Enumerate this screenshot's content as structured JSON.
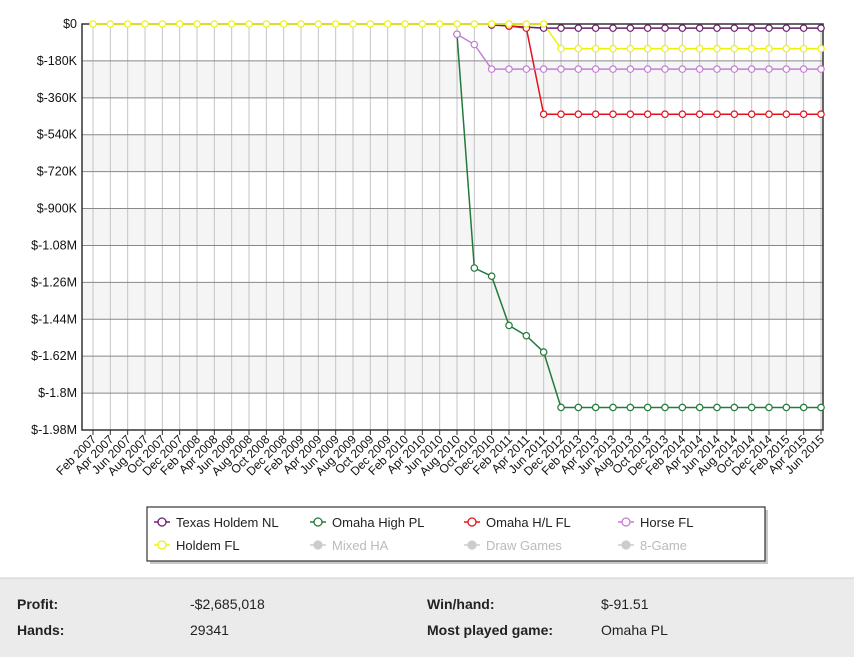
{
  "chart_data": {
    "type": "line",
    "categories": [
      "Feb 2007",
      "Apr 2007",
      "Jun 2007",
      "Aug 2007",
      "Oct 2007",
      "Dec 2007",
      "Feb 2008",
      "Apr 2008",
      "Jun 2008",
      "Aug 2008",
      "Oct 2008",
      "Dec 2008",
      "Feb 2009",
      "Apr 2009",
      "Jun 2009",
      "Aug 2009",
      "Oct 2009",
      "Dec 2009",
      "Feb 2010",
      "Apr 2010",
      "Jun 2010",
      "Aug 2010",
      "Oct 2010",
      "Dec 2010",
      "Feb 2011",
      "Apr 2011",
      "Jun 2011",
      "Dec 2012",
      "Feb 2013",
      "Apr 2013",
      "Jun 2013",
      "Aug 2013",
      "Oct 2013",
      "Dec 2013",
      "Feb 2014",
      "Apr 2014",
      "Jun 2014",
      "Aug 2014",
      "Oct 2014",
      "Dec 2014",
      "Feb 2015",
      "Apr 2015",
      "Jun 2015"
    ],
    "series": [
      {
        "name": "Texas Holdem NL",
        "color": "#6b1a6b",
        "values": [
          null,
          null,
          null,
          null,
          null,
          null,
          null,
          null,
          null,
          null,
          null,
          null,
          null,
          null,
          null,
          null,
          null,
          null,
          null,
          null,
          null,
          null,
          null,
          -5000,
          -10000,
          -15000,
          -20000,
          -20000,
          -20000,
          -20000,
          -20000,
          -20000,
          -20000,
          -20000,
          -20000,
          -20000,
          -20000,
          -20000,
          -20000,
          -20000,
          -20000,
          -20000,
          -20000
        ]
      },
      {
        "name": "Omaha High PL",
        "color": "#237a3a",
        "values": [
          null,
          null,
          null,
          null,
          null,
          null,
          null,
          null,
          null,
          null,
          null,
          null,
          null,
          null,
          null,
          null,
          null,
          null,
          null,
          null,
          null,
          -50000,
          -1190000,
          -1230000,
          -1470000,
          -1520000,
          -1600000,
          -1870000,
          -1870000,
          -1870000,
          -1870000,
          -1870000,
          -1870000,
          -1870000,
          -1870000,
          -1870000,
          -1870000,
          -1870000,
          -1870000,
          -1870000,
          -1870000,
          -1870000,
          -1870000
        ]
      },
      {
        "name": "Omaha H/L FL",
        "color": "#e4121c",
        "values": [
          null,
          null,
          null,
          null,
          null,
          null,
          null,
          null,
          null,
          null,
          null,
          null,
          null,
          null,
          null,
          null,
          null,
          null,
          null,
          null,
          null,
          null,
          null,
          null,
          -10000,
          -20000,
          -440000,
          -440000,
          -440000,
          -440000,
          -440000,
          -440000,
          -440000,
          -440000,
          -440000,
          -440000,
          -440000,
          -440000,
          -440000,
          -440000,
          -440000,
          -440000,
          -440000
        ]
      },
      {
        "name": "Horse FL",
        "color": "#c47fd6",
        "values": [
          null,
          null,
          null,
          null,
          null,
          null,
          null,
          null,
          null,
          null,
          null,
          null,
          null,
          null,
          null,
          null,
          null,
          null,
          null,
          null,
          null,
          -50000,
          -100000,
          -220000,
          -220000,
          -220000,
          -220000,
          -220000,
          -220000,
          -220000,
          -220000,
          -220000,
          -220000,
          -220000,
          -220000,
          -220000,
          -220000,
          -220000,
          -220000,
          -220000,
          -220000,
          -220000,
          -220000
        ]
      },
      {
        "name": "Holdem FL",
        "color": "#eef20a",
        "values": [
          0,
          0,
          0,
          0,
          0,
          0,
          0,
          0,
          0,
          0,
          0,
          0,
          0,
          0,
          0,
          0,
          0,
          0,
          0,
          0,
          0,
          0,
          0,
          0,
          0,
          0,
          0,
          -120000,
          -120000,
          -120000,
          -120000,
          -120000,
          -120000,
          -120000,
          -120000,
          -120000,
          -120000,
          -120000,
          -120000,
          -120000,
          -120000,
          -120000,
          -120000
        ]
      }
    ],
    "legend_inactive": [
      "Mixed HA",
      "Draw Games",
      "8-Game"
    ],
    "ylim": [
      -1980000,
      0
    ],
    "yticks": [
      {
        "value": 0,
        "label": "$0"
      },
      {
        "value": -180000,
        "label": "$-180K"
      },
      {
        "value": -360000,
        "label": "$-360K"
      },
      {
        "value": -540000,
        "label": "$-540K"
      },
      {
        "value": -720000,
        "label": "$-720K"
      },
      {
        "value": -900000,
        "label": "$-900K"
      },
      {
        "value": -1080000,
        "label": "$-1.08M"
      },
      {
        "value": -1260000,
        "label": "$-1.26M"
      },
      {
        "value": -1440000,
        "label": "$-1.44M"
      },
      {
        "value": -1620000,
        "label": "$-1.62M"
      },
      {
        "value": -1800000,
        "label": "$-1.8M"
      },
      {
        "value": -1980000,
        "label": "$-1.98M"
      }
    ],
    "grid": true,
    "legend": "bottom"
  },
  "summary": [
    {
      "label": "Profit:",
      "value": "-$2,685,018"
    },
    {
      "label": "Win/hand:",
      "value": "$-91.51"
    },
    {
      "label": "Hands:",
      "value": "29341"
    },
    {
      "label": "Most played game:",
      "value": "Omaha PL"
    }
  ]
}
